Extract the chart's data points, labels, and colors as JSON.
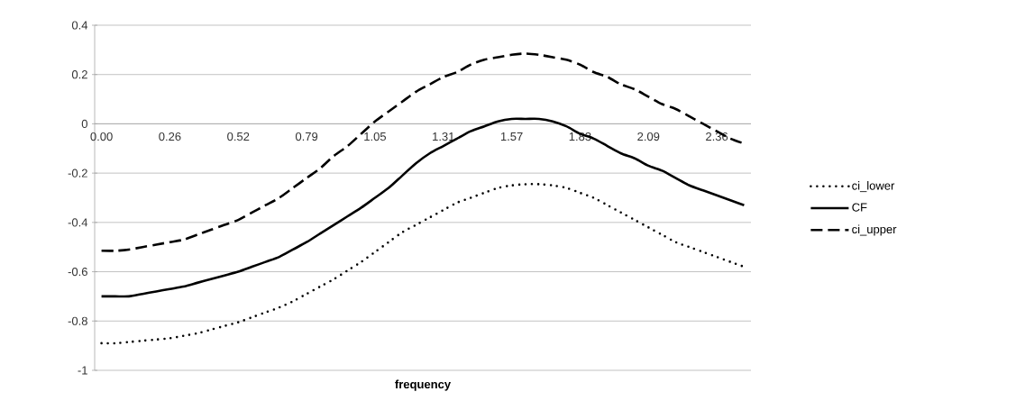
{
  "chart_data": {
    "type": "line",
    "xlabel": "frequency",
    "categories": [
      "0.00",
      null,
      null,
      null,
      null,
      "0.26",
      null,
      null,
      null,
      null,
      "0.52",
      null,
      null,
      null,
      null,
      "0.79",
      null,
      null,
      null,
      null,
      "1.05",
      null,
      null,
      null,
      null,
      "1.31",
      null,
      null,
      null,
      null,
      "1.57",
      null,
      null,
      null,
      null,
      "1.83",
      null,
      null,
      null,
      null,
      "2.09",
      null,
      null,
      null,
      null,
      "2.36",
      null,
      null
    ],
    "series": [
      {
        "name": "ci_lower",
        "color": "#000000",
        "line_style": "dotted",
        "values": [
          -0.89,
          -0.89,
          -0.885,
          -0.88,
          -0.875,
          -0.87,
          -0.86,
          -0.85,
          -0.835,
          -0.82,
          -0.805,
          -0.785,
          -0.765,
          -0.745,
          -0.72,
          -0.69,
          -0.66,
          -0.63,
          -0.595,
          -0.56,
          -0.52,
          -0.48,
          -0.44,
          -0.41,
          -0.38,
          -0.35,
          -0.32,
          -0.3,
          -0.28,
          -0.26,
          -0.25,
          -0.245,
          -0.245,
          -0.25,
          -0.26,
          -0.28,
          -0.3,
          -0.33,
          -0.36,
          -0.39,
          -0.42,
          -0.45,
          -0.48,
          -0.5,
          -0.52,
          -0.54,
          -0.56,
          -0.58
        ]
      },
      {
        "name": "CF",
        "color": "#000000",
        "line_style": "solid",
        "values": [
          -0.7,
          -0.7,
          -0.7,
          -0.69,
          -0.68,
          -0.67,
          -0.66,
          -0.645,
          -0.63,
          -0.615,
          -0.6,
          -0.58,
          -0.56,
          -0.54,
          -0.51,
          -0.48,
          -0.445,
          -0.41,
          -0.375,
          -0.34,
          -0.3,
          -0.26,
          -0.21,
          -0.16,
          -0.12,
          -0.09,
          -0.06,
          -0.03,
          -0.01,
          0.01,
          0.02,
          0.02,
          0.02,
          0.01,
          -0.01,
          -0.04,
          -0.06,
          -0.09,
          -0.12,
          -0.14,
          -0.17,
          -0.19,
          -0.22,
          -0.25,
          -0.27,
          -0.29,
          -0.31,
          -0.33
        ]
      },
      {
        "name": "ci_upper",
        "color": "#000000",
        "line_style": "dashed",
        "values": [
          -0.515,
          -0.515,
          -0.51,
          -0.5,
          -0.49,
          -0.48,
          -0.47,
          -0.45,
          -0.43,
          -0.41,
          -0.39,
          -0.36,
          -0.33,
          -0.3,
          -0.26,
          -0.22,
          -0.18,
          -0.13,
          -0.09,
          -0.04,
          0.01,
          0.05,
          0.09,
          0.13,
          0.16,
          0.19,
          0.21,
          0.24,
          0.26,
          0.27,
          0.28,
          0.285,
          0.28,
          0.27,
          0.26,
          0.24,
          0.21,
          0.19,
          0.16,
          0.14,
          0.11,
          0.08,
          0.06,
          0.03,
          0.0,
          -0.03,
          -0.06,
          -0.08
        ]
      }
    ],
    "ylim": [
      -1,
      0.4
    ],
    "yticks": [
      -1,
      -0.8,
      -0.6,
      -0.4,
      -0.2,
      0,
      0.2,
      0.4
    ],
    "grid": "y",
    "legend": "right"
  }
}
